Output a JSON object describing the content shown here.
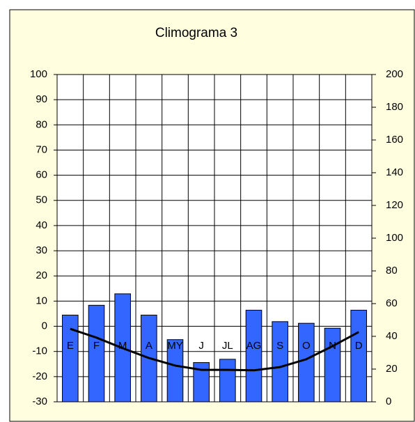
{
  "chart_data": {
    "type": "bar-line",
    "title": "Climograma 3",
    "categories": [
      "E",
      "F",
      "M",
      "A",
      "MY",
      "J",
      "JL",
      "AG",
      "S",
      "O",
      "N",
      "D"
    ],
    "series": [
      {
        "type": "bar",
        "axis": "y2",
        "color": "#3366ff",
        "values": [
          53,
          59,
          66,
          53,
          38,
          24,
          26,
          56,
          49,
          48,
          45,
          56
        ]
      },
      {
        "type": "line",
        "axis": "y",
        "color": "#000000",
        "values": [
          -1,
          -4.5,
          -8.7,
          -12.6,
          -15.6,
          -17.3,
          -17.3,
          -17.5,
          -16.2,
          -13.1,
          -7.9,
          -2.3
        ]
      }
    ],
    "ylim": [
      -30,
      100
    ],
    "yticks": [
      -30,
      -20,
      -10,
      0,
      10,
      20,
      30,
      40,
      50,
      60,
      70,
      80,
      90,
      100
    ],
    "y2lim": [
      0,
      200
    ],
    "y2ticks": [
      0,
      20,
      40,
      60,
      80,
      100,
      120,
      140,
      160,
      180,
      200
    ],
    "grid": true
  }
}
